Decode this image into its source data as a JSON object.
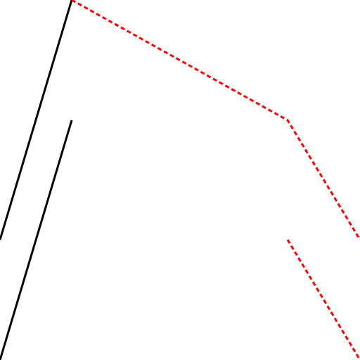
{
  "colors": {
    "background": "#ffffff",
    "solid_line": "#000000",
    "dashed_line": "#ff0000"
  }
}
